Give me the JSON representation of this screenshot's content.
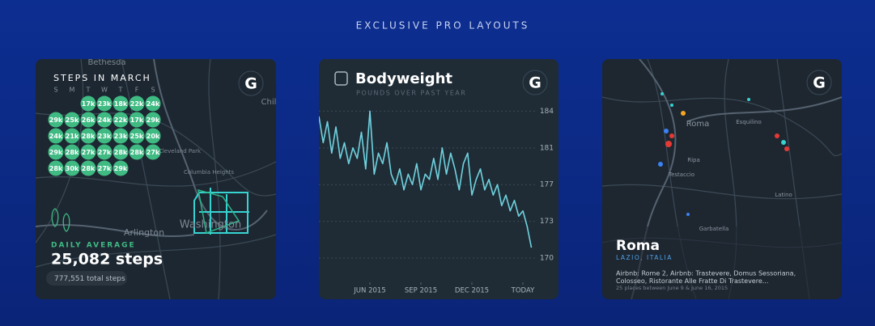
{
  "header": {
    "title": "EXCLUSIVE PRO LAYOUTS"
  },
  "cards": [
    {
      "logo": "G",
      "title": "STEPS IN MARCH",
      "weekdays": [
        "S",
        "M",
        "T",
        "W",
        "T",
        "F",
        "S"
      ],
      "calendar": [
        [
          null,
          null,
          "17k",
          "23k",
          "18k",
          "22k",
          "24k"
        ],
        [
          "29k",
          "25k",
          "26k",
          "24k",
          "22k",
          "17k",
          "29k"
        ],
        [
          "24k",
          "21k",
          "28k",
          "23k",
          "23k",
          "25k",
          "20k"
        ],
        [
          "29k",
          "28k",
          "27k",
          "27k",
          "28k",
          "28k",
          "27k"
        ],
        [
          "28k",
          "30k",
          "28k",
          "27k",
          "29k",
          null,
          null
        ]
      ],
      "map_labels": [
        "Bethesda",
        "Chil",
        "Cleveland Park",
        "Columbia Heights",
        "Washington",
        "Arlington"
      ],
      "stat_label": "DAILY AVERAGE",
      "stat_value": "25,082 steps",
      "total": "777,551 total steps"
    },
    {
      "logo": "G",
      "title": "Bodyweight",
      "subtitle": "POUNDS OVER PAST YEAR",
      "chart_data": {
        "type": "line",
        "color": "#6fd3e0",
        "x": [
          0,
          0.25,
          0.5,
          0.75,
          1,
          1.25,
          1.5,
          1.75,
          2,
          2.25,
          2.5,
          2.75,
          3,
          3.25,
          3.5,
          3.75,
          4,
          4.25,
          4.5,
          4.75,
          5,
          5.25,
          5.5,
          5.75,
          6,
          6.25,
          6.5,
          6.75,
          7,
          7.25,
          7.5,
          7.75,
          8,
          8.25,
          8.5,
          8.75,
          9,
          9.25,
          9.5,
          9.75,
          10,
          10.25,
          10.5,
          10.75,
          11,
          11.25,
          11.5,
          11.75,
          12,
          12.25,
          12.5
        ],
        "values": [
          183.5,
          181,
          183,
          180,
          182.5,
          179.5,
          181,
          179,
          180.5,
          179.5,
          182,
          178.5,
          184,
          178,
          180,
          179,
          181,
          178,
          177,
          178.5,
          176.5,
          178,
          177,
          179,
          176.5,
          178,
          177.5,
          179.5,
          177.5,
          180.5,
          178,
          180,
          178.5,
          176.5,
          179,
          180,
          176,
          177.5,
          178.5,
          176.5,
          177.5,
          176,
          177,
          175,
          176,
          174.5,
          175.5,
          174,
          174.5,
          173,
          171
        ],
        "xlim": [
          0,
          14
        ],
        "xticks": [
          {
            "value": 3,
            "label": "JUN 2015"
          },
          {
            "value": 6,
            "label": "SEP 2015"
          },
          {
            "value": 9,
            "label": "DEC 2015"
          },
          {
            "value": 12,
            "label": "TODAY"
          }
        ],
        "ylim": [
          168,
          186.5
        ],
        "yticks": [
          184,
          {
            "value": 180.5,
            "label": "181"
          },
          177,
          {
            "value": 173.5,
            "label": "173"
          },
          170
        ],
        "grid": true
      }
    },
    {
      "logo": "G",
      "title": "Roma",
      "subtitle": "LAZIO, ITALIA",
      "description": [
        "Airbnb: Rome 2, Airbnb: Trastevere, Domus Sessoriana,",
        "Colosseo, Ristorante Alle Fratte Di Trastevere..."
      ],
      "note": "25 places between June 9 & June 16, 2015",
      "map_labels": [
        "Roma",
        "Esquilino",
        "Ripa",
        "Testaccio",
        "Latino",
        "Garbatella"
      ]
    }
  ]
}
